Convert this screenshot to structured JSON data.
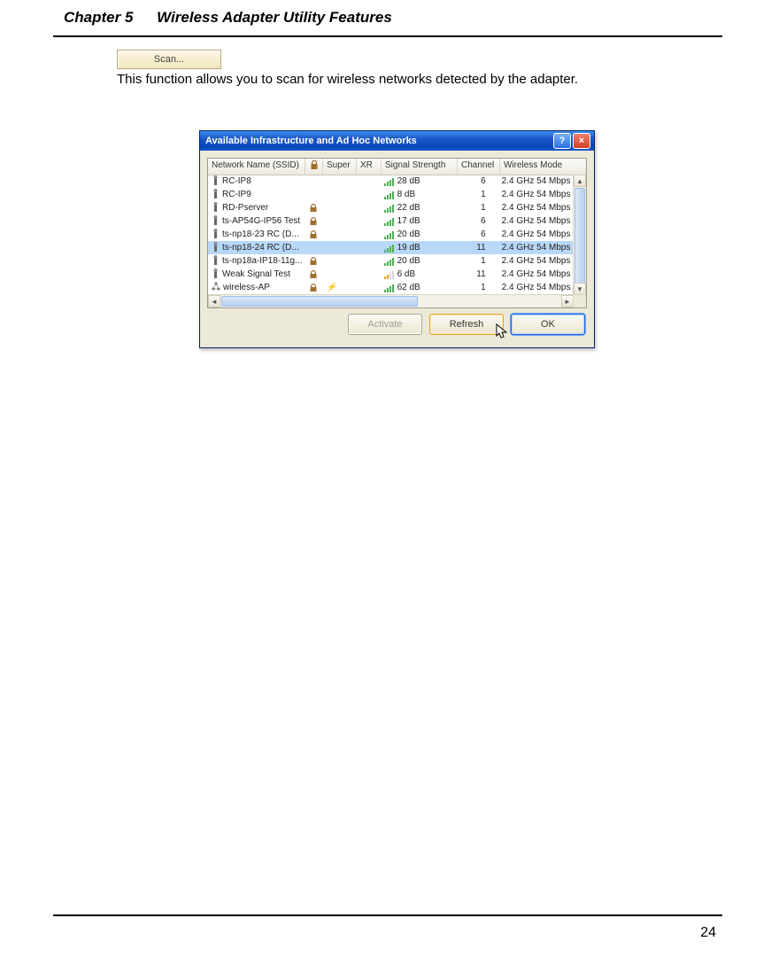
{
  "header": {
    "chapter": "Chapter 5",
    "title": "Wireless Adapter Utility Features"
  },
  "scan_button_label": "Scan...",
  "body_text": "This function allows you to scan for wireless networks detected by the adapter.",
  "dialog": {
    "title": "Available Infrastructure and Ad Hoc Networks",
    "columns": {
      "ssid": "Network Name (SSID)",
      "security": "🔒",
      "super": "Super",
      "xr": "XR",
      "signal": "Signal Strength",
      "channel": "Channel",
      "mode": "Wireless Mode"
    },
    "rows": [
      {
        "type": "infra",
        "ssid": "RC-IP8",
        "sec": false,
        "super": false,
        "bars": 4,
        "sig": "28 dB",
        "ch": "6",
        "mode": "2.4 GHz 54 Mbps",
        "sel": false
      },
      {
        "type": "infra",
        "ssid": "RC-IP9",
        "sec": false,
        "super": false,
        "bars": 4,
        "sig": "8 dB",
        "ch": "1",
        "mode": "2.4 GHz 54 Mbps",
        "sel": false
      },
      {
        "type": "infra",
        "ssid": "RD-Pserver",
        "sec": true,
        "super": false,
        "bars": 4,
        "sig": "22 dB",
        "ch": "1",
        "mode": "2.4 GHz 54 Mbps",
        "sel": false
      },
      {
        "type": "infra",
        "ssid": "ts-AP54G-IP56 Test",
        "sec": true,
        "super": false,
        "bars": 4,
        "sig": "17 dB",
        "ch": "6",
        "mode": "2.4 GHz 54 Mbps",
        "sel": false
      },
      {
        "type": "infra",
        "ssid": "ts-np18-23 RC (D...",
        "sec": true,
        "super": false,
        "bars": 4,
        "sig": "20 dB",
        "ch": "6",
        "mode": "2.4 GHz 54 Mbps",
        "sel": false
      },
      {
        "type": "infra",
        "ssid": "ts-np18-24 RC (D...",
        "sec": false,
        "super": false,
        "bars": 4,
        "sig": "19 dB",
        "ch": "11",
        "mode": "2.4 GHz 54 Mbps",
        "sel": true
      },
      {
        "type": "infra",
        "ssid": "ts-np18a-IP18-11g...",
        "sec": true,
        "super": false,
        "bars": 4,
        "sig": "20 dB",
        "ch": "1",
        "mode": "2.4 GHz 54 Mbps",
        "sel": false
      },
      {
        "type": "infra",
        "ssid": "Weak Signal Test",
        "sec": true,
        "super": false,
        "bars": 2,
        "sig": "6 dB",
        "ch": "11",
        "mode": "2.4 GHz 54 Mbps",
        "sel": false,
        "orange": true
      },
      {
        "type": "adhoc",
        "ssid": "wireless-AP",
        "sec": true,
        "super": true,
        "bars": 4,
        "sig": "62 dB",
        "ch": "1",
        "mode": "2.4 GHz 54 Mbps",
        "sel": false
      }
    ],
    "buttons": {
      "activate": "Activate",
      "refresh": "Refresh",
      "ok": "OK"
    }
  },
  "page_number": "24"
}
